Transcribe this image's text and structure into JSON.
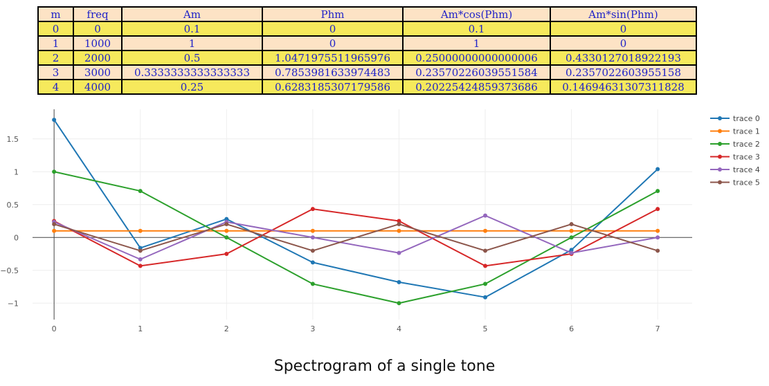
{
  "table": {
    "columns": [
      "m",
      "freq",
      "Am",
      "Phm",
      "Am*cos(Phm)",
      "Am*sin(Phm)"
    ],
    "rows": [
      [
        "0",
        "0",
        "0.1",
        "0",
        "0.1",
        "0"
      ],
      [
        "1",
        "1000",
        "1",
        "0",
        "1",
        "0"
      ],
      [
        "2",
        "2000",
        "0.5",
        "1.0471975511965976",
        "0.25000000000000006",
        "0.4330127018922193"
      ],
      [
        "3",
        "3000",
        "0.3333333333333333",
        "0.7853981633974483",
        "0.23570226039551584",
        "0.2357022603955158"
      ],
      [
        "4",
        "4000",
        "0.25",
        "0.6283185307179586",
        "0.20225424859373686",
        "0.14694631307311828"
      ]
    ]
  },
  "chart_data": {
    "type": "line",
    "x": [
      0,
      1,
      2,
      3,
      4,
      5,
      6,
      7
    ],
    "xlim": [
      -0.25,
      7.4
    ],
    "ylim": [
      -1.25,
      1.95
    ],
    "x_ticks": [
      0,
      1,
      2,
      3,
      4,
      5,
      6,
      7
    ],
    "y_ticks": [
      1.5,
      1,
      0.5,
      0,
      -0.5,
      -1
    ],
    "y_tick_labels": [
      "1.5",
      "1",
      "0.5",
      "0",
      "−0.5",
      "−1"
    ],
    "grid": true,
    "legend_position": "top-right",
    "series": [
      {
        "name": "trace 0",
        "color": "#1f77b4",
        "values": [
          1.79,
          -0.16,
          0.28,
          -0.38,
          -0.68,
          -0.91,
          -0.19,
          1.04
        ]
      },
      {
        "name": "trace 1",
        "color": "#ff7f0e",
        "values": [
          0.1,
          0.1,
          0.1,
          0.1,
          0.1,
          0.1,
          0.1,
          0.1
        ]
      },
      {
        "name": "trace 2",
        "color": "#2ca02c",
        "values": [
          1.0,
          0.707,
          0.0,
          -0.707,
          -1.0,
          -0.707,
          0.0,
          0.707
        ]
      },
      {
        "name": "trace 3",
        "color": "#d62728",
        "values": [
          0.25,
          -0.433,
          -0.25,
          0.433,
          0.25,
          -0.433,
          -0.25,
          0.433
        ]
      },
      {
        "name": "trace 4",
        "color": "#9467bd",
        "values": [
          0.236,
          -0.333,
          0.236,
          0.0,
          -0.236,
          0.333,
          -0.236,
          0.0
        ]
      },
      {
        "name": "trace 5",
        "color": "#8c564b",
        "values": [
          0.202,
          -0.202,
          0.202,
          -0.202,
          0.202,
          -0.202,
          0.202,
          -0.202
        ]
      }
    ]
  },
  "caption": "Spectrogram of a single tone"
}
